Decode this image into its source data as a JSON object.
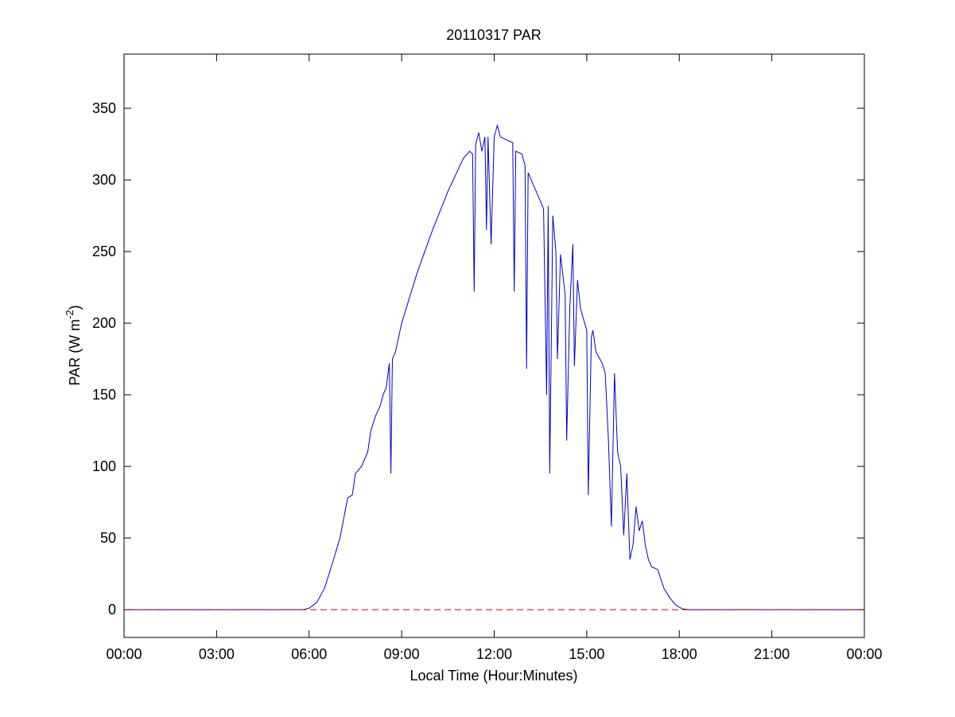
{
  "chart_data": {
    "type": "line",
    "title": "20110317 PAR",
    "xlabel": "Local Time (Hour:Minutes)",
    "ylabel": [
      "PAR (W m",
      "-2",
      ")"
    ],
    "xlim": [
      0,
      24
    ],
    "ylim": [
      -19.4,
      387.8
    ],
    "xticks": [
      {
        "value": 0,
        "label": "00:00"
      },
      {
        "value": 3,
        "label": "03:00"
      },
      {
        "value": 6,
        "label": "06:00"
      },
      {
        "value": 9,
        "label": "09:00"
      },
      {
        "value": 12,
        "label": "12:00"
      },
      {
        "value": 15,
        "label": "15:00"
      },
      {
        "value": 18,
        "label": "18:00"
      },
      {
        "value": 21,
        "label": "21:00"
      },
      {
        "value": 24,
        "label": "00:00"
      }
    ],
    "yticks": [
      0,
      50,
      100,
      150,
      200,
      250,
      300,
      350
    ],
    "hlines": [
      {
        "y": 0,
        "color": "#cc0000",
        "dashed": true
      }
    ],
    "series": [
      {
        "color": "#0000cc",
        "x": [
          0,
          5.8,
          6.0,
          6.25,
          6.5,
          6.75,
          7.0,
          7.25,
          7.4,
          7.5,
          7.7,
          7.9,
          8.0,
          8.15,
          8.3,
          8.4,
          8.5,
          8.6,
          8.65,
          8.7,
          8.8,
          9.0,
          9.5,
          10.0,
          10.5,
          11.0,
          11.2,
          11.3,
          11.35,
          11.4,
          11.5,
          11.6,
          11.7,
          11.75,
          11.8,
          11.9,
          12.0,
          12.1,
          12.2,
          12.4,
          12.6,
          12.65,
          12.7,
          12.9,
          13.0,
          13.05,
          13.1,
          13.3,
          13.5,
          13.6,
          13.7,
          13.75,
          13.8,
          13.9,
          14.0,
          14.05,
          14.15,
          14.3,
          14.35,
          14.45,
          14.55,
          14.6,
          14.7,
          14.8,
          15.0,
          15.05,
          15.15,
          15.2,
          15.3,
          15.5,
          15.6,
          15.7,
          15.8,
          15.9,
          16.0,
          16.1,
          16.2,
          16.3,
          16.4,
          16.5,
          16.6,
          16.7,
          16.8,
          16.9,
          17.0,
          17.1,
          17.3,
          17.5,
          17.7,
          17.9,
          18.1,
          18.3,
          24
        ],
        "values": [
          0,
          0,
          1,
          5,
          15,
          32,
          50,
          78,
          80,
          95,
          100,
          110,
          125,
          135,
          142,
          150,
          155,
          172,
          95,
          175,
          180,
          200,
          235,
          265,
          292,
          315,
          320,
          318,
          222,
          325,
          333,
          320,
          330,
          265,
          330,
          255,
          330,
          338,
          330,
          328,
          326,
          222,
          320,
          318,
          310,
          168,
          305,
          295,
          285,
          280,
          150,
          282,
          95,
          275,
          250,
          175,
          248,
          220,
          118,
          210,
          255,
          170,
          230,
          210,
          195,
          80,
          190,
          195,
          180,
          172,
          165,
          120,
          58,
          165,
          110,
          100,
          52,
          95,
          35,
          45,
          72,
          55,
          62,
          45,
          35,
          30,
          28,
          15,
          8,
          3,
          0.5,
          0,
          0
        ]
      }
    ]
  }
}
